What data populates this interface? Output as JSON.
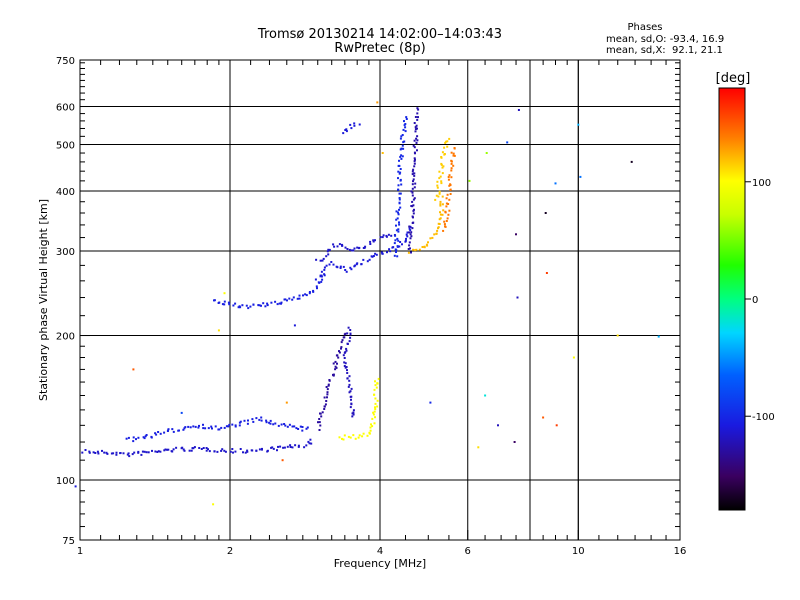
{
  "chart_data": {
    "type": "scatter",
    "title": "Tromsø 20130214 14:02:00–14:03:43",
    "subtitle": "RwPretec (8p)",
    "stats": {
      "heading": "Phases",
      "line_o": "mean, sd,O: -93.4, 16.9",
      "line_x": "mean, sd,X:  92.1, 21.1"
    },
    "xlabel": "Frequency [MHz]",
    "ylabel": "Stationary phase Virtual Height [km]",
    "xscale": "log",
    "yscale": "log",
    "xlim": [
      1,
      16
    ],
    "ylim": [
      75,
      750
    ],
    "xticks": [
      {
        "value": 1,
        "label": "1"
      },
      {
        "value": 2,
        "label": "2"
      },
      {
        "value": 4,
        "label": "4"
      },
      {
        "value": 6,
        "label": "6"
      },
      {
        "value": 10,
        "label": "10"
      },
      {
        "value": 16,
        "label": "16"
      }
    ],
    "yticks": [
      {
        "value": 75,
        "label": "75"
      },
      {
        "value": 100,
        "label": "100"
      },
      {
        "value": 200,
        "label": "200"
      },
      {
        "value": 300,
        "label": "300"
      },
      {
        "value": 400,
        "label": "400"
      },
      {
        "value": 500,
        "label": "500"
      },
      {
        "value": 600,
        "label": "600"
      },
      {
        "value": 750,
        "label": "750"
      }
    ],
    "grid": true,
    "colorbar": {
      "label": "[deg]",
      "range": [
        -180,
        180
      ],
      "ticks": [
        {
          "value": 100,
          "label": "100"
        },
        {
          "value": 0,
          "label": "0"
        },
        {
          "value": -100,
          "label": "-100"
        }
      ]
    },
    "traces": [
      {
        "phase": -115,
        "points": [
          [
            1.02,
            115
          ],
          [
            1.08,
            114
          ],
          [
            1.15,
            114
          ],
          [
            1.25,
            113
          ],
          [
            1.35,
            114
          ],
          [
            1.45,
            115
          ],
          [
            1.6,
            116
          ],
          [
            1.8,
            116
          ],
          [
            2.0,
            115
          ],
          [
            2.2,
            115
          ],
          [
            2.4,
            116
          ],
          [
            2.6,
            117
          ],
          [
            2.8,
            118
          ],
          [
            2.95,
            121
          ]
        ]
      },
      {
        "phase": -105,
        "points": [
          [
            1.25,
            121
          ],
          [
            1.4,
            124
          ],
          [
            1.55,
            127
          ],
          [
            1.7,
            130
          ],
          [
            1.9,
            128
          ],
          [
            2.1,
            131
          ],
          [
            2.3,
            134
          ],
          [
            2.5,
            130
          ],
          [
            2.7,
            129
          ],
          [
            2.9,
            127
          ]
        ]
      },
      {
        "phase": -130,
        "points": [
          [
            3.0,
            128
          ],
          [
            3.05,
            135
          ],
          [
            3.1,
            145
          ],
          [
            3.15,
            155
          ],
          [
            3.2,
            162
          ],
          [
            3.25,
            172
          ],
          [
            3.3,
            185
          ],
          [
            3.35,
            195
          ],
          [
            3.4,
            205
          ]
        ]
      },
      {
        "phase": -120,
        "points": [
          [
            3.55,
            135
          ],
          [
            3.5,
            145
          ],
          [
            3.48,
            155
          ],
          [
            3.45,
            165
          ],
          [
            3.42,
            175
          ],
          [
            3.4,
            185
          ],
          [
            3.45,
            195
          ],
          [
            3.48,
            210
          ]
        ]
      },
      {
        "phase": 100,
        "points": [
          [
            3.3,
            122
          ],
          [
            3.45,
            123
          ],
          [
            3.6,
            123
          ],
          [
            3.75,
            124
          ],
          [
            3.85,
            128
          ],
          [
            3.9,
            135
          ],
          [
            3.92,
            145
          ],
          [
            3.93,
            155
          ],
          [
            3.95,
            165
          ]
        ]
      },
      {
        "phase": -105,
        "points": [
          [
            1.85,
            235
          ],
          [
            2.0,
            232
          ],
          [
            2.2,
            230
          ],
          [
            2.4,
            232
          ],
          [
            2.6,
            236
          ],
          [
            2.8,
            242
          ],
          [
            2.95,
            250
          ],
          [
            3.05,
            262
          ],
          [
            3.1,
            270
          ]
        ]
      },
      {
        "phase": -110,
        "points": [
          [
            3.0,
            262
          ],
          [
            3.1,
            275
          ],
          [
            3.2,
            282
          ],
          [
            3.3,
            278
          ],
          [
            3.45,
            274
          ],
          [
            3.6,
            280
          ],
          [
            3.8,
            288
          ],
          [
            4.0,
            296
          ],
          [
            4.2,
            302
          ],
          [
            4.4,
            310
          ],
          [
            4.55,
            322
          ],
          [
            4.65,
            340
          ]
        ]
      },
      {
        "phase": -115,
        "points": [
          [
            3.0,
            285
          ],
          [
            3.1,
            292
          ],
          [
            3.2,
            302
          ],
          [
            3.3,
            312
          ],
          [
            3.5,
            300
          ],
          [
            3.7,
            305
          ],
          [
            3.9,
            315
          ],
          [
            4.1,
            322
          ],
          [
            4.3,
            328
          ]
        ]
      },
      {
        "phase": -100,
        "points": [
          [
            4.3,
            290
          ],
          [
            4.32,
            320
          ],
          [
            4.35,
            360
          ],
          [
            4.38,
            410
          ],
          [
            4.4,
            460
          ],
          [
            4.45,
            520
          ],
          [
            4.5,
            580
          ]
        ]
      },
      {
        "phase": -125,
        "points": [
          [
            4.6,
            300
          ],
          [
            4.62,
            340
          ],
          [
            4.65,
            380
          ],
          [
            4.68,
            420
          ],
          [
            4.7,
            470
          ],
          [
            4.72,
            530
          ],
          [
            4.75,
            600
          ]
        ]
      },
      {
        "phase": -110,
        "points": [
          [
            3.35,
            530
          ],
          [
            3.45,
            540
          ],
          [
            3.55,
            548
          ],
          [
            3.65,
            552
          ]
        ]
      },
      {
        "phase": 120,
        "points": [
          [
            4.6,
            298
          ],
          [
            4.8,
            302
          ],
          [
            5.0,
            312
          ],
          [
            5.15,
            325
          ],
          [
            5.25,
            340
          ],
          [
            5.3,
            360
          ],
          [
            5.35,
            390
          ]
        ]
      },
      {
        "phase": 140,
        "points": [
          [
            5.4,
            330
          ],
          [
            5.45,
            360
          ],
          [
            5.5,
            395
          ],
          [
            5.55,
            430
          ],
          [
            5.6,
            465
          ],
          [
            5.62,
            500
          ]
        ]
      },
      {
        "phase": 115,
        "points": [
          [
            5.2,
            385
          ],
          [
            5.25,
            410
          ],
          [
            5.3,
            440
          ],
          [
            5.35,
            470
          ],
          [
            5.5,
            520
          ]
        ]
      }
    ],
    "scatter_points": [
      {
        "x": 0.98,
        "y": 97,
        "phase": -110
      },
      {
        "x": 1.28,
        "y": 170,
        "phase": 150
      },
      {
        "x": 1.85,
        "y": 89,
        "phase": 100
      },
      {
        "x": 1.9,
        "y": 205,
        "phase": 110
      },
      {
        "x": 1.95,
        "y": 245,
        "phase": 100
      },
      {
        "x": 2.55,
        "y": 110,
        "phase": 150
      },
      {
        "x": 2.7,
        "y": 210,
        "phase": -110
      },
      {
        "x": 3.95,
        "y": 612,
        "phase": 130
      },
      {
        "x": 4.05,
        "y": 480,
        "phase": 120
      },
      {
        "x": 5.05,
        "y": 145,
        "phase": -100
      },
      {
        "x": 6.05,
        "y": 420,
        "phase": 60
      },
      {
        "x": 6.3,
        "y": 117,
        "phase": 110
      },
      {
        "x": 6.5,
        "y": 150,
        "phase": -20
      },
      {
        "x": 6.55,
        "y": 480,
        "phase": 60
      },
      {
        "x": 6.9,
        "y": 130,
        "phase": -120
      },
      {
        "x": 7.2,
        "y": 505,
        "phase": -80
      },
      {
        "x": 7.45,
        "y": 120,
        "phase": -150
      },
      {
        "x": 7.5,
        "y": 325,
        "phase": -150
      },
      {
        "x": 7.55,
        "y": 240,
        "phase": -120
      },
      {
        "x": 7.6,
        "y": 590,
        "phase": -120
      },
      {
        "x": 8.5,
        "y": 135,
        "phase": 150
      },
      {
        "x": 8.6,
        "y": 360,
        "phase": -170
      },
      {
        "x": 8.65,
        "y": 270,
        "phase": 160
      },
      {
        "x": 9.0,
        "y": 415,
        "phase": -60
      },
      {
        "x": 9.05,
        "y": 130,
        "phase": 160
      },
      {
        "x": 9.8,
        "y": 180,
        "phase": 100
      },
      {
        "x": 10.0,
        "y": 550,
        "phase": -40
      },
      {
        "x": 10.1,
        "y": 428,
        "phase": -60
      },
      {
        "x": 12.0,
        "y": 200,
        "phase": 110
      },
      {
        "x": 12.8,
        "y": 460,
        "phase": -170
      },
      {
        "x": 14.5,
        "y": 199,
        "phase": -40
      },
      {
        "x": 1.6,
        "y": 138,
        "phase": -80
      },
      {
        "x": 2.6,
        "y": 145,
        "phase": 130
      }
    ]
  }
}
